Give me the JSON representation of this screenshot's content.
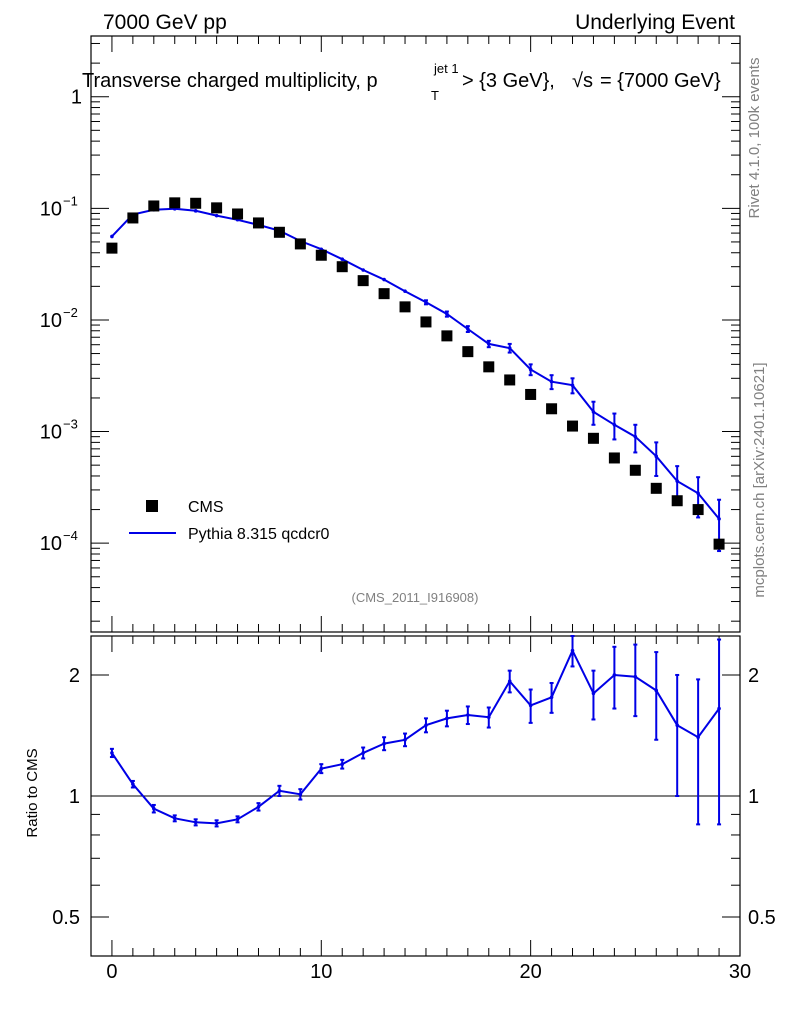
{
  "header": {
    "left": "7000 GeV pp",
    "right": "Underlying Event",
    "title_main": "Transverse charged multiplicity, p",
    "title_sub": "T",
    "title_sup": "jet 1",
    "title_rest": " > {3 GeV}, ",
    "title_sqrt": "√s",
    "title_end": " = {7000 GeV}"
  },
  "side": {
    "rivet": "Rivet 4.1.0,  100k events",
    "mcplots": "mcplots.cern.ch [arXiv:2401.10621]"
  },
  "analysis_tag": "(CMS_2011_I916908)",
  "ratio_ylabel": "Ratio to CMS",
  "legend": {
    "data": "CMS",
    "mc": "Pythia 8.315 qcdcr0"
  },
  "colors": {
    "data": "#000000",
    "mc": "#0000e6"
  },
  "chart_data": [
    {
      "type": "scatter",
      "panel": "main",
      "yscale": "log",
      "xlim": [
        -1,
        30
      ],
      "ylim": [
        1.6e-05,
        3.5
      ],
      "ytick_labels": [
        {
          "value": 1,
          "base": "1",
          "exp": ""
        },
        {
          "value": 0.1,
          "base": "10",
          "exp": "−1"
        },
        {
          "value": 0.01,
          "base": "10",
          "exp": "−2"
        },
        {
          "value": 0.001,
          "base": "10",
          "exp": "−3"
        },
        {
          "value": 0.0001,
          "base": "10",
          "exp": "−4"
        }
      ],
      "x": [
        0,
        1,
        2,
        3,
        4,
        5,
        6,
        7,
        8,
        9,
        10,
        11,
        12,
        13,
        14,
        15,
        16,
        17,
        18,
        19,
        20,
        21,
        22,
        23,
        24,
        25,
        26,
        27,
        28,
        29
      ],
      "series": [
        {
          "name": "CMS",
          "values": [
            0.044,
            0.082,
            0.105,
            0.112,
            0.111,
            0.101,
            0.089,
            0.074,
            0.061,
            0.048,
            0.038,
            0.03,
            0.0225,
            0.0172,
            0.0131,
            0.0096,
            0.0072,
            0.0052,
            0.0038,
            0.0029,
            0.00215,
            0.0016,
            0.00112,
            0.00087,
            0.00058,
            0.00045,
            0.00031,
            0.00024,
            0.0002,
            9.8e-05
          ]
        },
        {
          "name": "Pythia 8.315 qcdcr0",
          "values": [
            0.056,
            0.088,
            0.097,
            0.099,
            0.095,
            0.086,
            0.079,
            0.071,
            0.063,
            0.051,
            0.043,
            0.035,
            0.028,
            0.023,
            0.0181,
            0.0144,
            0.0113,
            0.0083,
            0.0061,
            0.0056,
            0.0036,
            0.0028,
            0.0026,
            0.0015,
            0.00115,
            0.0009,
            0.0006,
            0.00036,
            0.00028,
            0.000165
          ],
          "errors": [
            0,
            0,
            0,
            0,
            0,
            0,
            0,
            0,
            0,
            0,
            0,
            0,
            0,
            0,
            0,
            0.0006,
            0.0006,
            0.0005,
            0.0004,
            0.0005,
            0.0004,
            0.0004,
            0.0004,
            0.00035,
            0.0003,
            0.00025,
            0.0002,
            0.00013,
            0.00011,
            8e-05
          ]
        }
      ]
    },
    {
      "type": "line",
      "panel": "ratio",
      "ylabel": "Ratio to CMS",
      "yscale": "log",
      "xlim": [
        -1,
        30
      ],
      "ylim": [
        0.4,
        2.5
      ],
      "reference": 1,
      "ytick_labels": [
        {
          "value": 0.5,
          "label": "0.5"
        },
        {
          "value": 1,
          "label": "1"
        },
        {
          "value": 2,
          "label": "2"
        }
      ],
      "xtick_labels": [
        {
          "value": 0,
          "label": "0"
        },
        {
          "value": 10,
          "label": "10"
        },
        {
          "value": 20,
          "label": "20"
        },
        {
          "value": 30,
          "label": "30"
        }
      ],
      "x": [
        0,
        1,
        2,
        3,
        4,
        5,
        6,
        7,
        8,
        9,
        10,
        11,
        12,
        13,
        14,
        15,
        16,
        17,
        18,
        19,
        20,
        21,
        22,
        23,
        24,
        25,
        26,
        27,
        28,
        29
      ],
      "values": [
        1.28,
        1.07,
        0.93,
        0.88,
        0.86,
        0.855,
        0.875,
        0.94,
        1.03,
        1.01,
        1.17,
        1.2,
        1.28,
        1.35,
        1.38,
        1.5,
        1.56,
        1.59,
        1.57,
        1.93,
        1.68,
        1.76,
        2.3,
        1.8,
        2.0,
        1.98,
        1.83,
        1.5,
        1.4,
        1.65
      ],
      "err_lo": [
        0.03,
        0.02,
        0.02,
        0.015,
        0.015,
        0.015,
        0.015,
        0.02,
        0.03,
        0.03,
        0.03,
        0.03,
        0.04,
        0.05,
        0.05,
        0.06,
        0.07,
        0.08,
        0.09,
        0.12,
        0.16,
        0.15,
        0.2,
        0.25,
        0.35,
        0.4,
        0.45,
        0.5,
        0.55,
        0.8
      ],
      "err_hi": [
        0.03,
        0.02,
        0.02,
        0.015,
        0.015,
        0.015,
        0.015,
        0.02,
        0.03,
        0.03,
        0.03,
        0.03,
        0.04,
        0.05,
        0.05,
        0.06,
        0.07,
        0.08,
        0.09,
        0.12,
        0.16,
        0.15,
        0.2,
        0.25,
        0.35,
        0.4,
        0.45,
        0.5,
        0.55,
        0.8
      ]
    }
  ]
}
